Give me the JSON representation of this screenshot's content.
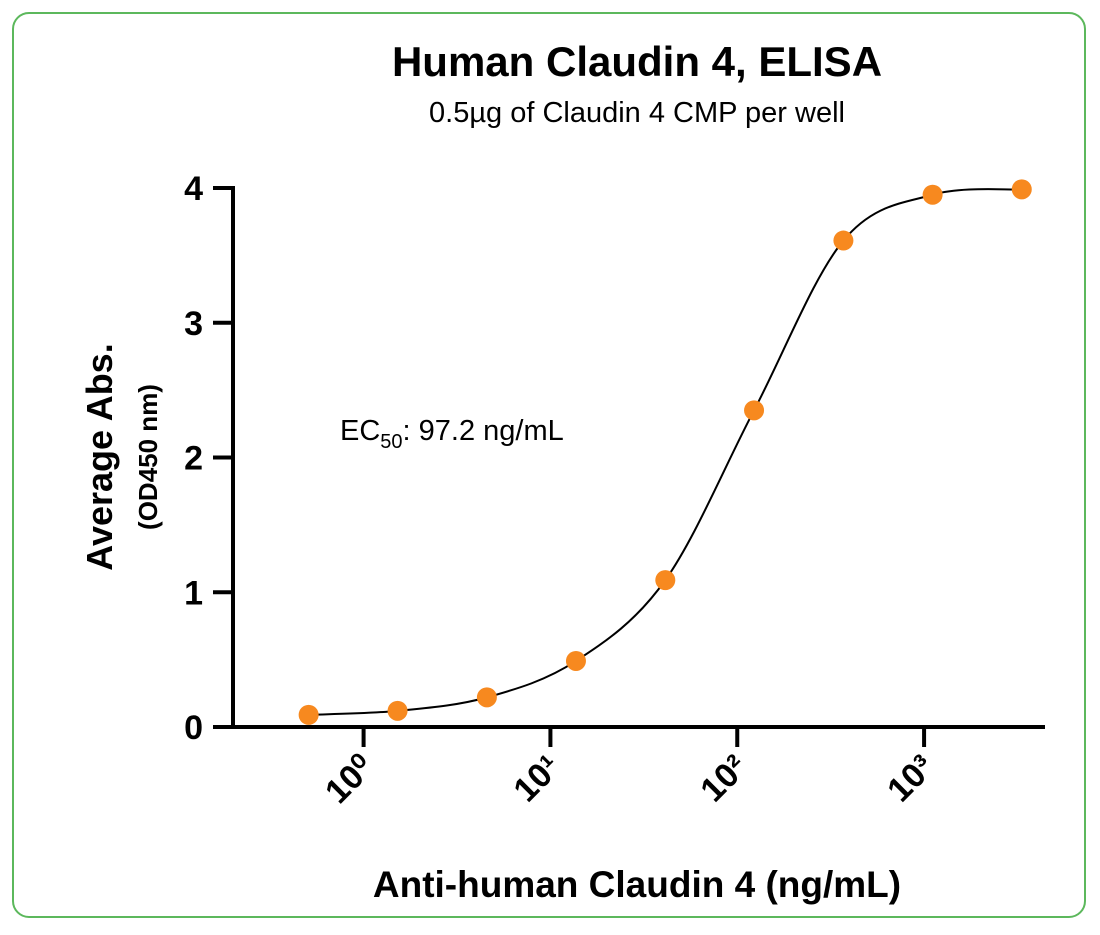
{
  "chart_data": {
    "type": "scatter",
    "title": "Human Claudin 4, ELISA",
    "subtitle": "0.5µg of Claudin 4 CMP per well",
    "xlabel": "Anti-human Claudin 4 (ng/mL)",
    "ylabel": [
      "Average Abs.",
      "(OD450 nm)"
    ],
    "annotation": {
      "text": "EC",
      "subscript": "50",
      "suffix": ": 97.2 ng/mL"
    },
    "x": [
      0.508,
      1.52,
      4.57,
      13.7,
      41.2,
      123,
      370,
      1111,
      3333
    ],
    "series": [
      {
        "name": "Average Abs.",
        "color": "#f7891f",
        "values": [
          0.09,
          0.12,
          0.22,
          0.49,
          1.09,
          2.35,
          3.61,
          3.95,
          3.99
        ]
      }
    ],
    "xscale": "log",
    "xlim": [
      0.2,
      4330
    ],
    "xticks": [
      {
        "value": 1,
        "label": "10⁰"
      },
      {
        "value": 10,
        "label": "10¹"
      },
      {
        "value": 100,
        "label": "10²"
      },
      {
        "value": 1000,
        "label": "10³"
      }
    ],
    "ylim": [
      0,
      4
    ],
    "yticks": [
      0,
      1,
      2,
      3,
      4
    ],
    "fit_line": true
  }
}
